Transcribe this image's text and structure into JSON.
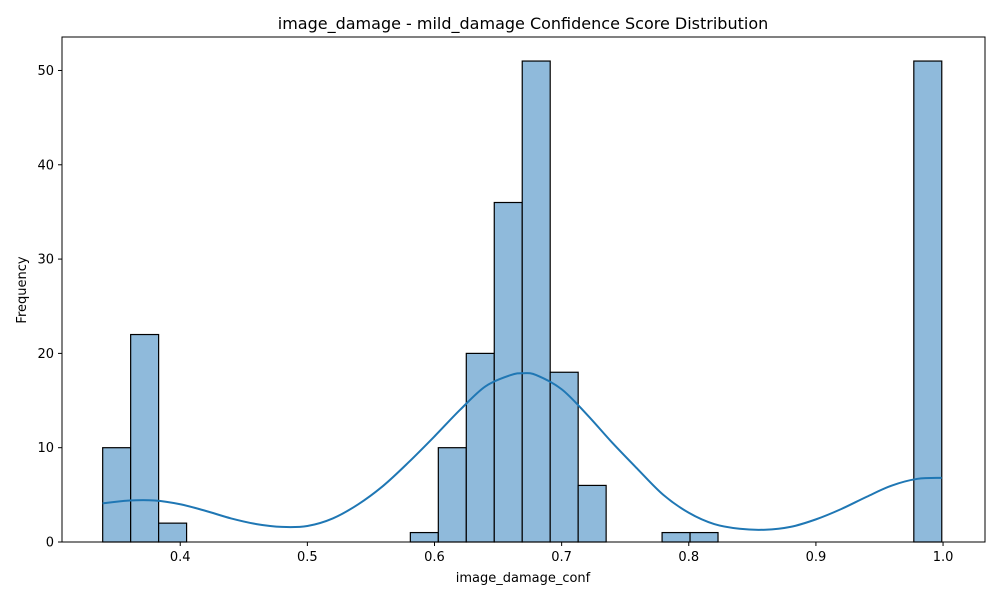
{
  "chart_data": {
    "type": "bar",
    "subtype": "histogram-with-kde",
    "title": "image_damage - mild_damage Confidence Score Distribution",
    "xlabel": "image_damage_conf",
    "ylabel": "Frequency",
    "xlim": [
      0.307,
      1.033
    ],
    "ylim": [
      0,
      53.55
    ],
    "xticks": [
      0.4,
      0.5,
      0.6,
      0.7,
      0.8,
      0.9,
      1.0
    ],
    "xtick_labels": [
      "0.4",
      "0.5",
      "0.6",
      "0.7",
      "0.8",
      "0.9",
      "1.0"
    ],
    "yticks": [
      0,
      10,
      20,
      30,
      40,
      50
    ],
    "ytick_labels": [
      "0",
      "10",
      "20",
      "30",
      "40",
      "50"
    ],
    "grid": false,
    "bar_color": "#8fbadb",
    "bar_edge_color": "#000000",
    "kde_color": "#1f77b4",
    "bins": [
      {
        "x0": 0.339,
        "x1": 0.361,
        "count": 10
      },
      {
        "x0": 0.361,
        "x1": 0.383,
        "count": 22
      },
      {
        "x0": 0.383,
        "x1": 0.405,
        "count": 2
      },
      {
        "x0": 0.405,
        "x1": 0.427,
        "count": 0
      },
      {
        "x0": 0.427,
        "x1": 0.449,
        "count": 0
      },
      {
        "x0": 0.449,
        "x1": 0.471,
        "count": 0
      },
      {
        "x0": 0.471,
        "x1": 0.493,
        "count": 0
      },
      {
        "x0": 0.493,
        "x1": 0.515,
        "count": 0
      },
      {
        "x0": 0.515,
        "x1": 0.537,
        "count": 0
      },
      {
        "x0": 0.537,
        "x1": 0.559,
        "count": 0
      },
      {
        "x0": 0.559,
        "x1": 0.581,
        "count": 0
      },
      {
        "x0": 0.581,
        "x1": 0.603,
        "count": 1
      },
      {
        "x0": 0.603,
        "x1": 0.625,
        "count": 10
      },
      {
        "x0": 0.625,
        "x1": 0.647,
        "count": 20
      },
      {
        "x0": 0.647,
        "x1": 0.669,
        "count": 36
      },
      {
        "x0": 0.669,
        "x1": 0.691,
        "count": 51
      },
      {
        "x0": 0.691,
        "x1": 0.713,
        "count": 18
      },
      {
        "x0": 0.713,
        "x1": 0.735,
        "count": 6
      },
      {
        "x0": 0.735,
        "x1": 0.757,
        "count": 0
      },
      {
        "x0": 0.757,
        "x1": 0.779,
        "count": 0
      },
      {
        "x0": 0.779,
        "x1": 0.801,
        "count": 1
      },
      {
        "x0": 0.801,
        "x1": 0.823,
        "count": 1
      },
      {
        "x0": 0.823,
        "x1": 0.845,
        "count": 0
      },
      {
        "x0": 0.845,
        "x1": 0.867,
        "count": 0
      },
      {
        "x0": 0.867,
        "x1": 0.889,
        "count": 0
      },
      {
        "x0": 0.889,
        "x1": 0.911,
        "count": 0
      },
      {
        "x0": 0.911,
        "x1": 0.933,
        "count": 0
      },
      {
        "x0": 0.933,
        "x1": 0.955,
        "count": 0
      },
      {
        "x0": 0.955,
        "x1": 0.977,
        "count": 0
      },
      {
        "x0": 0.977,
        "x1": 0.999,
        "count": 51
      }
    ],
    "kde": {
      "x": [
        0.339,
        0.36,
        0.38,
        0.4,
        0.42,
        0.44,
        0.46,
        0.48,
        0.5,
        0.52,
        0.54,
        0.56,
        0.58,
        0.6,
        0.62,
        0.64,
        0.66,
        0.67,
        0.68,
        0.7,
        0.72,
        0.74,
        0.76,
        0.78,
        0.8,
        0.82,
        0.84,
        0.86,
        0.88,
        0.9,
        0.92,
        0.94,
        0.96,
        0.98,
        0.999
      ],
      "y": [
        4.1,
        4.4,
        4.4,
        4.0,
        3.3,
        2.5,
        1.9,
        1.6,
        1.7,
        2.5,
        4.0,
        6.0,
        8.5,
        11.2,
        14.0,
        16.5,
        17.7,
        17.9,
        17.7,
        16.2,
        13.5,
        10.5,
        7.7,
        5.0,
        3.1,
        1.9,
        1.4,
        1.3,
        1.6,
        2.4,
        3.5,
        4.8,
        6.0,
        6.7,
        6.8
      ]
    }
  }
}
